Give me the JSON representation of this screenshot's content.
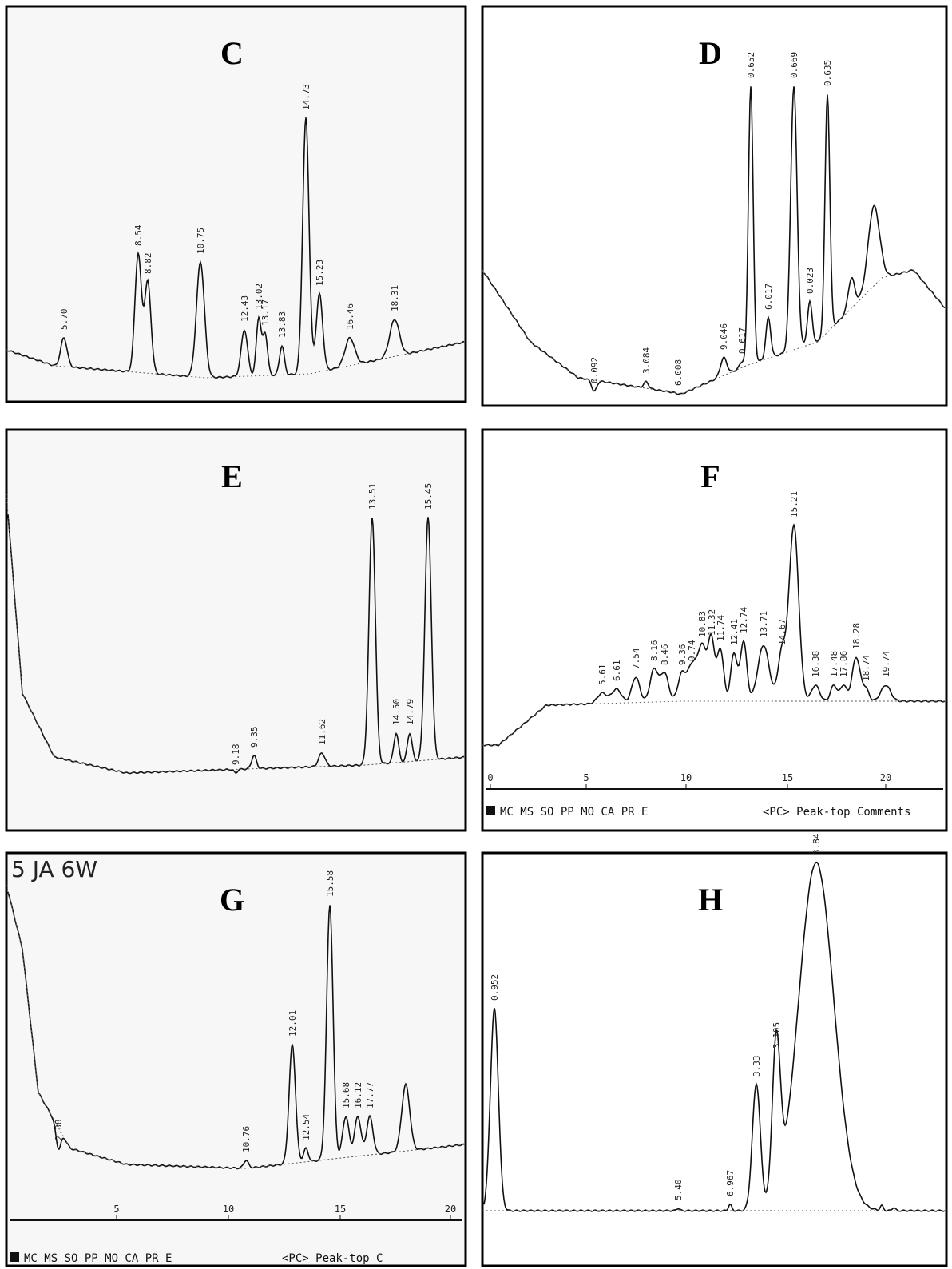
{
  "panels": [
    {
      "letter": "C",
      "peaks": [
        "5.70",
        "8.54",
        "8.82",
        "10.75",
        "12.43",
        "13.02",
        "13.17",
        "13.83",
        "14.73",
        "15.23",
        "16.46",
        "18.31"
      ]
    },
    {
      "letter": "D",
      "peaks": [
        "0.092",
        "3.084",
        "6.008",
        "9.046",
        "0.617",
        "0.652",
        "6.017",
        "0.669",
        "0.023",
        "0.635"
      ]
    },
    {
      "letter": "E",
      "peaks": [
        "9.18",
        "9.35",
        "11.62",
        "13.51",
        "14.50",
        "14.79",
        "15.45"
      ]
    },
    {
      "letter": "F",
      "peaks": [
        "5.61",
        "6.61",
        "7.54",
        "8.16",
        "8.46",
        "9.36",
        "9.74",
        "10.83",
        "11.32",
        "11.74",
        "12.41",
        "12.74",
        "13.71",
        "14.67",
        "15.21",
        "16.38",
        "17.48",
        "17.86",
        "18.28",
        "18.74",
        "19.74"
      ],
      "axis_ticks": [
        "0",
        "5",
        "10",
        "15",
        "20"
      ],
      "footer": {
        "left": "MC MS SO PP MO CA PR E",
        "right": "<PC> Peak-top Comments"
      }
    },
    {
      "letter": "G",
      "note": "5 JA 6W",
      "peaks": [
        "2.38",
        "10.76",
        "12.01",
        "12.54",
        "15.58",
        "15.68",
        "16.12",
        "17.77"
      ],
      "axis_ticks": [
        "5",
        "10",
        "15",
        "20"
      ],
      "footer": {
        "left": "MC MS SO PP MO CA PR E",
        "right": "<PC> Peak-top C"
      }
    },
    {
      "letter": "H",
      "peaks": [
        "0.952",
        "5.40",
        "6.967",
        "3.33",
        "3.105",
        "3.84"
      ]
    }
  ]
}
